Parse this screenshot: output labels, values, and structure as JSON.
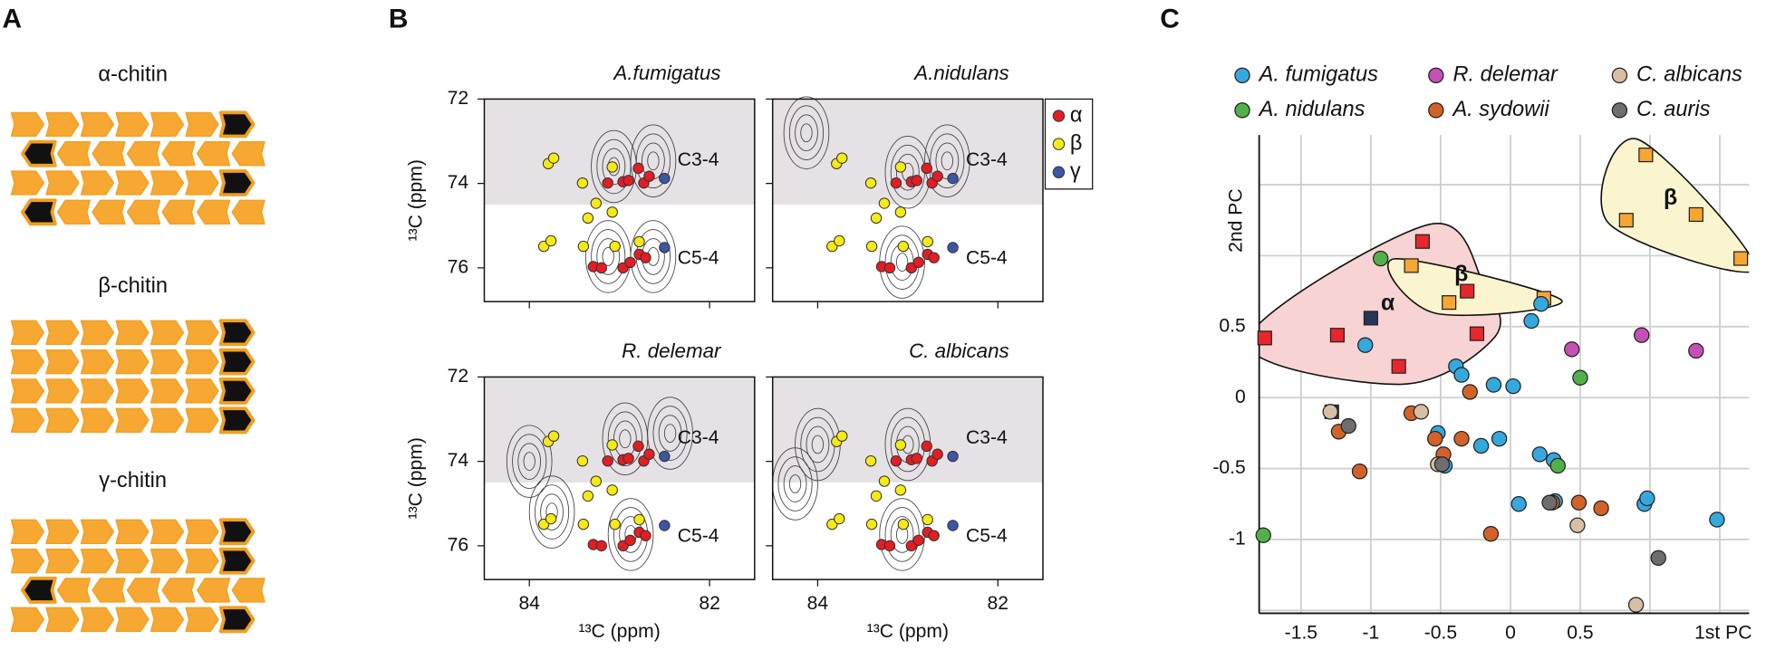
{
  "chart_data": [
    {
      "type": "chitin",
      "panel": "A",
      "items": [
        "α-chitin",
        "β-chitin",
        "γ-chitin"
      ]
    },
    {
      "type": "nmr",
      "panel": "B",
      "panels": [
        "A.fumigatus",
        "A.nidulans",
        "R. delemar",
        "C. albicans"
      ],
      "xlabel": "¹³C (ppm)",
      "ylabel": "¹³C (ppm)",
      "xlim": [
        84.5,
        81.5
      ],
      "ylim": [
        72,
        76.8
      ],
      "xticks": [
        84,
        82
      ],
      "yticks": [
        72,
        74,
        76
      ],
      "shaded_ylim": [
        72,
        74.5
      ],
      "region_labels": [
        "C3-4",
        "C5-4"
      ],
      "series": [
        {
          "name": "α",
          "color": "#e31d24",
          "x": [
            83.13,
            82.96,
            82.9,
            82.79,
            82.73,
            82.67,
            83.29,
            83.2,
            82.96,
            82.88,
            82.78,
            82.71
          ],
          "y": [
            73.99,
            73.96,
            73.93,
            73.64,
            73.99,
            73.83,
            75.97,
            76.0,
            76.0,
            75.87,
            75.68,
            75.76
          ]
        },
        {
          "name": "β",
          "color": "#f5ea14",
          "x": [
            83.79,
            83.73,
            83.41,
            83.26,
            83.08,
            83.84,
            83.76,
            83.35,
            83.08,
            83.4,
            83.05,
            82.78
          ],
          "y": [
            73.53,
            73.4,
            73.99,
            74.47,
            73.61,
            75.49,
            75.36,
            74.82,
            74.68,
            75.49,
            75.49,
            75.38
          ]
        },
        {
          "name": "γ",
          "color": "#3c55a5",
          "x": [
            82.5,
            82.5
          ],
          "y": [
            73.88,
            75.52
          ]
        }
      ]
    },
    {
      "type": "scatter",
      "panel": "C",
      "xlabel": "1st PC",
      "ylabel": "2nd PC",
      "xlim": [
        -1.8,
        1.71
      ],
      "ylim": [
        -1.52,
        1.85
      ],
      "xticks": [
        -1.5,
        -1,
        -0.5,
        0,
        0.5
      ],
      "yticks": [
        -1,
        -0.5,
        0,
        0.5
      ],
      "xgrid": [
        -1.5,
        -1,
        -0.5,
        0,
        0.5,
        1,
        1.5
      ],
      "ygrid": [
        -1.5,
        -1,
        -0.5,
        0,
        0.5,
        1,
        1.5
      ],
      "series": [
        {
          "marker": "square",
          "color": "#e8262b",
          "region_color": "#f8d3d4",
          "region_label": "α",
          "x": [
            -1.76,
            -1.24,
            -0.63,
            -0.8,
            -0.31,
            -0.24
          ],
          "y": [
            0.42,
            0.44,
            1.1,
            0.22,
            0.75,
            0.45
          ]
        },
        {
          "marker": "square",
          "color": "#f7a533",
          "region_color": "#fbf5cf",
          "region_label": "β",
          "x": [
            -0.71,
            -0.44,
            0.24
          ],
          "y": [
            0.93,
            0.67,
            0.7
          ]
        },
        {
          "marker": "square",
          "color": "#f7a533",
          "region_color": "#fbf5cf",
          "region_label": "β",
          "x": [
            0.97,
            0.83,
            1.33,
            1.65
          ],
          "y": [
            1.71,
            1.25,
            1.29,
            0.98
          ]
        },
        {
          "marker": "square",
          "color": "#25365a",
          "x": [
            -1.0,
            -1.28
          ],
          "y": [
            0.56,
            -0.1
          ]
        },
        {
          "name": "A. fumigatus",
          "marker": "circle",
          "color": "#35a8de",
          "x": [
            -1.04,
            -0.39,
            -0.35,
            -0.12,
            0.02,
            0.15,
            0.22,
            -0.52,
            -0.47,
            -0.21,
            -0.08,
            0.21,
            0.31,
            0.06,
            0.32,
            0.96,
            0.98,
            1.48
          ],
          "y": [
            0.37,
            0.22,
            0.16,
            0.09,
            0.08,
            0.54,
            0.66,
            -0.25,
            -0.48,
            -0.34,
            -0.29,
            -0.4,
            -0.44,
            -0.75,
            -0.73,
            -0.75,
            -0.71,
            -0.86
          ]
        },
        {
          "name": "A. nidulans",
          "marker": "circle",
          "color": "#52b04a",
          "x": [
            -0.93,
            0.5,
            0.34,
            -1.77
          ],
          "y": [
            0.98,
            0.14,
            -0.48,
            -0.97
          ]
        },
        {
          "name": "R. delemar",
          "marker": "circle",
          "color": "#c44fb5",
          "x": [
            0.44,
            0.94,
            1.33
          ],
          "y": [
            0.34,
            0.44,
            0.33
          ]
        },
        {
          "name": "A. sydowii",
          "marker": "circle",
          "color": "#d2622a",
          "x": [
            -0.29,
            -0.71,
            -1.23,
            -0.54,
            -0.35,
            -0.48,
            -1.08,
            -0.14,
            0.3,
            0.49,
            0.65
          ],
          "y": [
            0.04,
            -0.11,
            -0.24,
            -0.29,
            -0.29,
            -0.4,
            -0.52,
            -0.96,
            -0.74,
            -0.74,
            -0.78
          ]
        },
        {
          "name": "C. albicans",
          "marker": "circle",
          "color": "#d8bea2",
          "x": [
            -1.29,
            -0.64,
            -0.52,
            0.48,
            0.9
          ],
          "y": [
            -0.1,
            -0.1,
            -0.47,
            -0.9,
            -1.46
          ]
        },
        {
          "name": "C. auris",
          "marker": "circle",
          "color": "#6e6e6e",
          "x": [
            -1.16,
            -0.49,
            0.28,
            1.06
          ],
          "y": [
            -0.2,
            -0.47,
            -0.74,
            -1.13
          ]
        }
      ]
    }
  ]
}
